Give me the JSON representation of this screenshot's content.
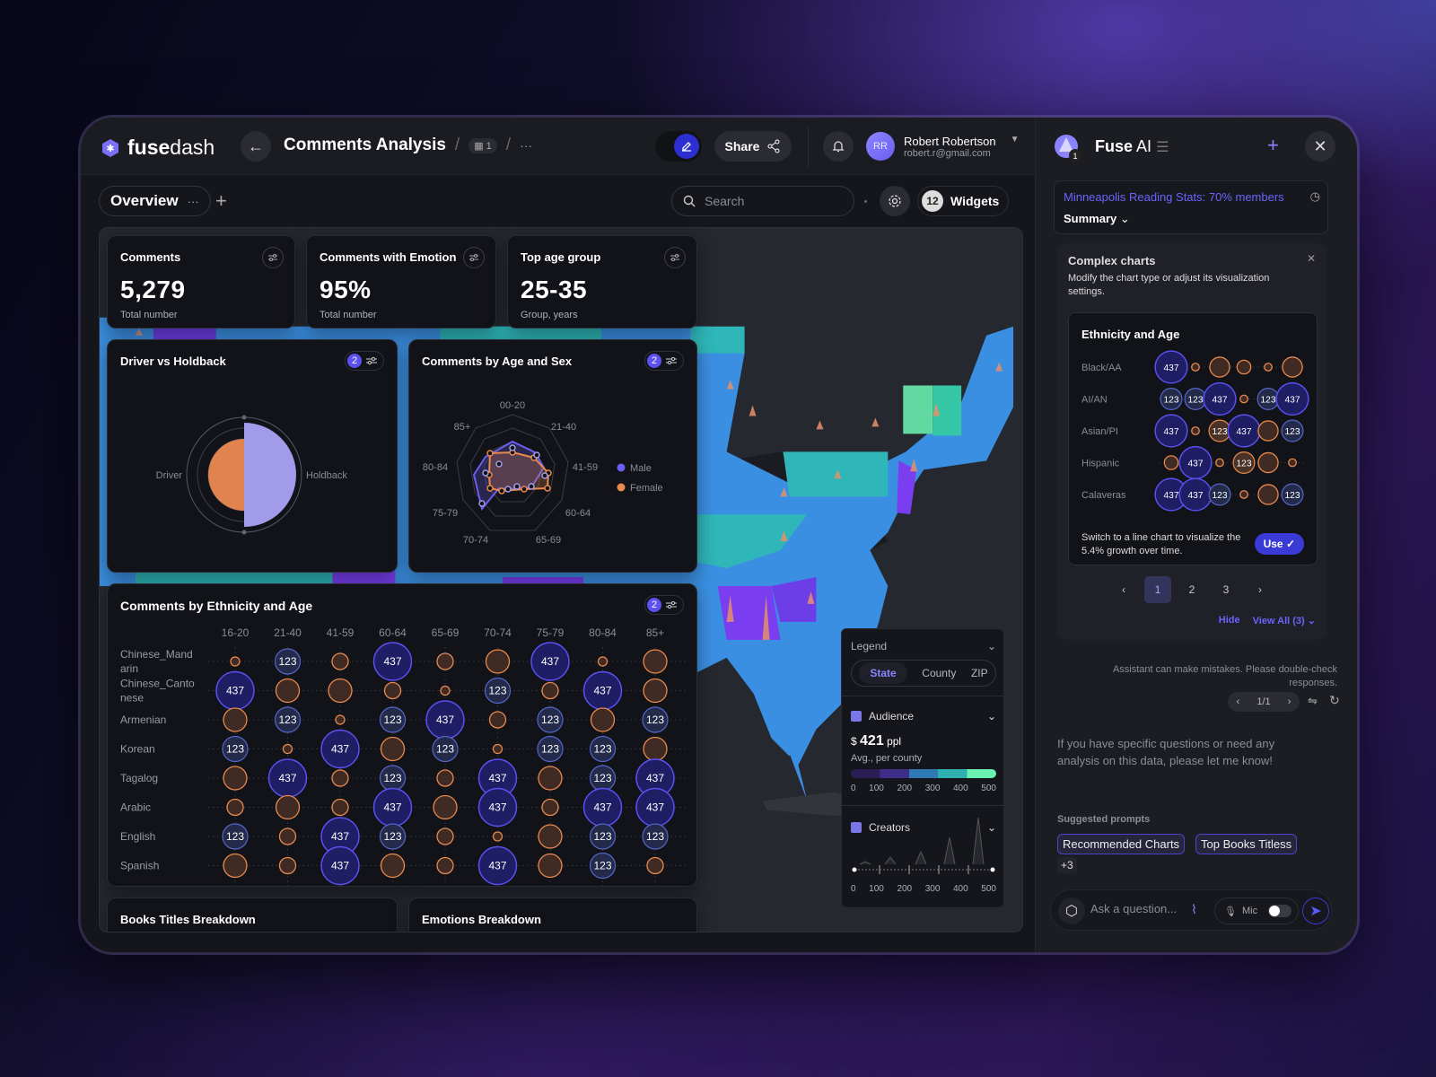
{
  "app": {
    "logo_bold": "fuse",
    "logo_light": "dash"
  },
  "header": {
    "title": "Comments Analysis",
    "page_badge": "1",
    "more": "···",
    "share_label": "Share",
    "user": {
      "initials": "RR",
      "name": "Robert Robertson",
      "email": "robert.r@gmail.com"
    }
  },
  "subbar": {
    "tab_label": "Overview",
    "tab_more": "···",
    "add": "+",
    "search_placeholder": "Search",
    "widgets_count": "12",
    "widgets_label": "Widgets"
  },
  "kpis": [
    {
      "title": "Comments",
      "value": "5,279",
      "sub": "Total number"
    },
    {
      "title": "Comments with Emotion",
      "value": "95%",
      "sub": "Total number"
    },
    {
      "title": "Top age group",
      "value": "25-35",
      "sub": "Group, years"
    }
  ],
  "driver_card": {
    "title": "Driver vs Holdback",
    "badge": "2",
    "left_label": "Driver",
    "right_label": "Holdback"
  },
  "radar_card": {
    "title": "Comments by Age and Sex",
    "badge": "2",
    "axes": [
      "00-20",
      "21-40",
      "41-59",
      "60-64",
      "65-69",
      "70-74",
      "75-79",
      "80-84",
      "85+"
    ],
    "legend": [
      {
        "name": "Male",
        "color": "#6a5ff0"
      },
      {
        "name": "Female",
        "color": "#e8894e"
      }
    ]
  },
  "bubble_card": {
    "title": "Comments by Ethnicity and Age",
    "badge": "2",
    "columns": [
      "16-20",
      "21-40",
      "41-59",
      "60-64",
      "65-69",
      "70-74",
      "75-79",
      "80-84",
      "85+"
    ],
    "rows": [
      {
        "label": "Chinese_Mand arin",
        "cells": [
          "s",
          "123",
          "m",
          "437",
          "m",
          "l",
          "437",
          "s",
          "l"
        ]
      },
      {
        "label": "Chinese_Canto nese",
        "cells": [
          "437",
          "l",
          "l",
          "m",
          "s",
          "123",
          "m",
          "437",
          "l"
        ]
      },
      {
        "label": "Armenian",
        "cells": [
          "l",
          "123",
          "s",
          "123",
          "437",
          "m",
          "123",
          "l",
          "123"
        ]
      },
      {
        "label": "Korean",
        "cells": [
          "123",
          "s",
          "437",
          "l",
          "123",
          "s",
          "123",
          "123",
          "l"
        ]
      },
      {
        "label": "Tagalog",
        "cells": [
          "l",
          "437",
          "m",
          "123",
          "m",
          "437",
          "l",
          "123",
          "437"
        ]
      },
      {
        "label": "Arabic",
        "cells": [
          "m",
          "l",
          "m",
          "437",
          "l",
          "437",
          "m",
          "437",
          "437"
        ]
      },
      {
        "label": "English",
        "cells": [
          "123",
          "m",
          "437",
          "123",
          "m",
          "s",
          "l",
          "123",
          "123"
        ]
      },
      {
        "label": "Spanish",
        "cells": [
          "l",
          "m",
          "437",
          "l",
          "m",
          "437",
          "l",
          "123",
          "m"
        ]
      }
    ]
  },
  "bottom_cards": [
    {
      "title": "Books Titles Breakdown"
    },
    {
      "title": "Emotions Breakdown"
    }
  ],
  "legend_panel": {
    "title": "Legend",
    "tabs": [
      "State",
      "County",
      "ZIP"
    ],
    "active_tab": "State",
    "audience": {
      "label": "Audience",
      "currency": "$",
      "value": "421",
      "unit": "ppl",
      "sub": "Avg., per county",
      "ticks": [
        "0",
        "100",
        "200",
        "300",
        "400",
        "500"
      ]
    },
    "creators": {
      "label": "Creators",
      "ticks": [
        "0",
        "100",
        "200",
        "300",
        "400",
        "500"
      ]
    }
  },
  "ai": {
    "title_bold": "Fuse",
    "title_light": "AI",
    "notif": "1",
    "summary_link": "Minneapolis Reading Stats: 70% members",
    "summary_select": "Summary",
    "suggestion": {
      "title": "Complex charts",
      "desc": "Modify the chart type or adjust its visualization settings."
    },
    "eth_card": {
      "title": "Ethnicity and Age",
      "rows": [
        {
          "label": "Black/AA",
          "cells": [
            "437",
            "s",
            "l",
            "m",
            "s",
            "l"
          ]
        },
        {
          "label": "AI/AN",
          "cells": [
            "123",
            "123",
            "437",
            "s",
            "123",
            "437"
          ]
        },
        {
          "label": "Asian/PI",
          "cells": [
            "437",
            "s",
            "123o",
            "437",
            "l",
            "123"
          ]
        },
        {
          "label": "Hispanic",
          "cells": [
            "m",
            "437",
            "s",
            "123o",
            "l",
            "s"
          ]
        },
        {
          "label": "Calaveras",
          "cells": [
            "437",
            "437",
            "123",
            "s",
            "l",
            "123"
          ]
        }
      ],
      "tip": "Switch to a line chart to visualize the 5.4% growth over time.",
      "use_label": "Use"
    },
    "pages": [
      "1",
      "2",
      "3"
    ],
    "active_page": "1",
    "hide_label": "Hide",
    "view_all_label": "View All (3)",
    "disclaimer": "Assistant can make mistakes. Please double-check responses.",
    "response_pager": "1/1",
    "message": "If you have specific questions or need any analysis on this data, please let me know!",
    "suggested_title": "Suggested prompts",
    "prompts": [
      "Recommended Charts",
      "Top Books Titless"
    ],
    "more_prompts": "+3",
    "ask_placeholder": "Ask a question...",
    "mic_label": "Mic"
  },
  "colors": {
    "accent": "#5b50f0",
    "orange": "#e8894e",
    "lavender": "#a29bea",
    "map_blue": "#3a8fe0",
    "map_teal": "#2fb6b8",
    "map_purple": "#7a3ef0"
  }
}
